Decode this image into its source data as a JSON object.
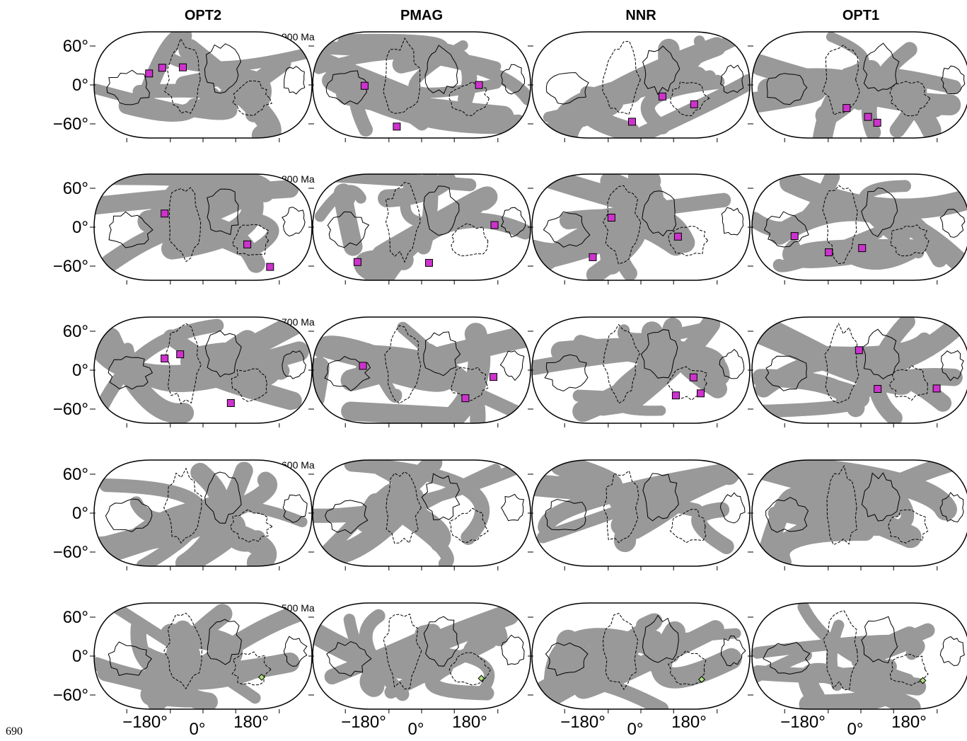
{
  "columns": [
    "OPT2",
    "PMAG",
    "NNR",
    "OPT1"
  ],
  "rows": [
    "900 Ma",
    "800 Ma",
    "700 Ma",
    "600 Ma",
    "500 Ma"
  ],
  "y_axis_labels": [
    "60°",
    "0°",
    "−60°"
  ],
  "x_axis_labels": [
    "−180°",
    "0°",
    "180°"
  ],
  "page_number": "690"
}
